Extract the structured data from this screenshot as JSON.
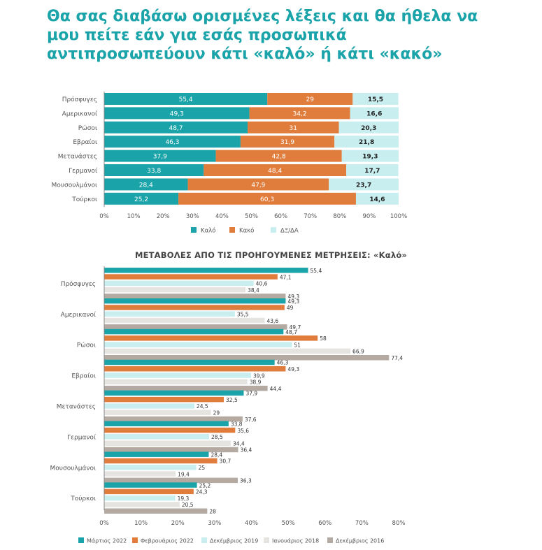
{
  "title": "Θα σας διαβάσω ορισμένες λέξεις και θα ήθελα να μου πείτε εάν για εσάς προσωπικά αντιπροσωπεύουν κάτι «καλό» ή κάτι «κακό»",
  "chart_data": [
    {
      "type": "bar",
      "orientation": "horizontal",
      "stacked": true,
      "title": "",
      "categories": [
        "Πρόσφυγες",
        "Αμερικανοί",
        "Ρώσοι",
        "Εβραίοι",
        "Μετανάστες",
        "Γερμανοί",
        "Μουσουλμάνοι",
        "Τούρκοι"
      ],
      "series": [
        {
          "name": "Καλό",
          "color": "#1aa3a8",
          "values": [
            55.4,
            49.3,
            48.7,
            46.3,
            37.9,
            33.8,
            28.4,
            25.2
          ]
        },
        {
          "name": "Κακό",
          "color": "#e07d3c",
          "values": [
            29,
            34.2,
            31,
            31.9,
            42.8,
            48.4,
            47.9,
            60.3
          ]
        },
        {
          "name": "ΔΞ/ΔΑ",
          "color": "#c9eef0",
          "values": [
            15.5,
            16.6,
            20.3,
            21.8,
            19.3,
            17.7,
            23.7,
            14.6
          ]
        }
      ],
      "xlim": [
        0,
        100
      ],
      "xticks": [
        "0%",
        "10%",
        "20%",
        "30%",
        "40%",
        "50%",
        "60%",
        "70%",
        "80%",
        "90%",
        "100%"
      ],
      "legend_position": "bottom",
      "grid": false
    },
    {
      "type": "bar",
      "orientation": "horizontal",
      "stacked": false,
      "title": "ΜΕΤΑΒΟΛΕΣ ΑΠΟ ΤΙΣ ΠΡΟΗΓΟΥΜΕΝΕΣ ΜΕΤΡΗΣΕΙΣ: «Καλό»",
      "categories": [
        "Πρόσφυγες",
        "Αμερικανοί",
        "Ρώσοι",
        "Εβραίοι",
        "Μετανάστες",
        "Γερμανοί",
        "Μουσουλμάνοι",
        "Τούρκοι"
      ],
      "series": [
        {
          "name": "Μάρτιος 2022",
          "color": "#1aa3a8",
          "values": [
            55.4,
            49.3,
            48.7,
            46.3,
            37.9,
            33.8,
            28.4,
            25.2
          ]
        },
        {
          "name": "Φεβρουάριος 2022",
          "color": "#e07d3c",
          "values": [
            47.1,
            49,
            58,
            49.3,
            32.5,
            35.6,
            30.7,
            24.3
          ]
        },
        {
          "name": "Δεκέμβριος 2019",
          "color": "#c9eef0",
          "values": [
            40.6,
            35.5,
            51,
            39.9,
            24.5,
            28.5,
            25,
            19.3
          ]
        },
        {
          "name": "Ιανουάριος 2018",
          "color": "#e6e4e1",
          "values": [
            38.4,
            43.6,
            66.9,
            38.9,
            29,
            34.4,
            19.4,
            20.5
          ]
        },
        {
          "name": "Δεκέμβριος 2016",
          "color": "#b4aaa1",
          "values": [
            49.3,
            49.7,
            77.4,
            44.4,
            37.6,
            36.4,
            36.3,
            28
          ]
        }
      ],
      "xlim": [
        0,
        80
      ],
      "xticks": [
        "0%",
        "10%",
        "20%",
        "30%",
        "40%",
        "50%",
        "60%",
        "70%",
        "80%"
      ],
      "legend_position": "bottom",
      "grid": false
    }
  ]
}
